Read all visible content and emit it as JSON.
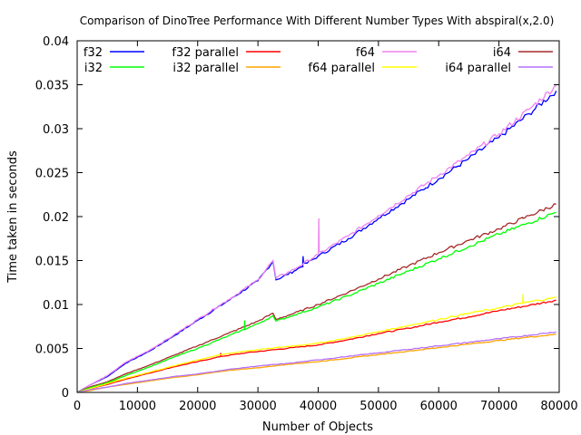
{
  "chart_data": {
    "type": "line",
    "title": "Comparison of DinoTree Performance With Different Number Types With abspiral(x,2.0)",
    "xlabel": "Number of Objects",
    "ylabel": "Time taken in seconds",
    "xlim": [
      0,
      80000
    ],
    "ylim": [
      0,
      0.04
    ],
    "x_ticks": [
      "0",
      "10000",
      "20000",
      "30000",
      "40000",
      "50000",
      "60000",
      "70000",
      "80000"
    ],
    "y_ticks": [
      "0",
      "0.005",
      "0.01",
      "0.015",
      "0.02",
      "0.025",
      "0.03",
      "0.035",
      "0.04"
    ],
    "grid": false,
    "legend_position": "top",
    "series": [
      {
        "name": "f32",
        "color": "#0000ff",
        "points": [
          [
            0,
            0
          ],
          [
            2000,
            0.0008
          ],
          [
            5000,
            0.0018
          ],
          [
            8000,
            0.0033
          ],
          [
            12000,
            0.0047
          ],
          [
            16000,
            0.0064
          ],
          [
            20000,
            0.0082
          ],
          [
            25000,
            0.0104
          ],
          [
            30000,
            0.0127
          ],
          [
            32500,
            0.0149
          ],
          [
            33000,
            0.0128
          ],
          [
            36000,
            0.0138
          ],
          [
            40000,
            0.0155
          ],
          [
            45000,
            0.0175
          ],
          [
            50000,
            0.0198
          ],
          [
            55000,
            0.022
          ],
          [
            60000,
            0.0243
          ],
          [
            65000,
            0.0266
          ],
          [
            70000,
            0.029
          ],
          [
            75000,
            0.0317
          ],
          [
            79500,
            0.0343
          ]
        ]
      },
      {
        "name": "f32 parallel",
        "color": "#ff0000",
        "points": [
          [
            0,
            0
          ],
          [
            2000,
            0.0004
          ],
          [
            5000,
            0.0009
          ],
          [
            8000,
            0.0015
          ],
          [
            12000,
            0.0022
          ],
          [
            16000,
            0.0029
          ],
          [
            20000,
            0.0035
          ],
          [
            24000,
            0.0041
          ],
          [
            28000,
            0.0045
          ],
          [
            32000,
            0.0048
          ],
          [
            36000,
            0.0051
          ],
          [
            40000,
            0.0054
          ],
          [
            45000,
            0.006
          ],
          [
            50000,
            0.0067
          ],
          [
            55000,
            0.0073
          ],
          [
            60000,
            0.008
          ],
          [
            65000,
            0.0086
          ],
          [
            70000,
            0.0093
          ],
          [
            75000,
            0.0099
          ],
          [
            79500,
            0.0105
          ]
        ]
      },
      {
        "name": "f64",
        "color": "#ee82ee",
        "points": [
          [
            0,
            0
          ],
          [
            2000,
            0.0008
          ],
          [
            5000,
            0.0019
          ],
          [
            8000,
            0.0034
          ],
          [
            12000,
            0.0048
          ],
          [
            16000,
            0.0065
          ],
          [
            20000,
            0.0083
          ],
          [
            25000,
            0.0105
          ],
          [
            30000,
            0.0128
          ],
          [
            32500,
            0.015
          ],
          [
            33000,
            0.013
          ],
          [
            36000,
            0.014
          ],
          [
            40000,
            0.0157
          ],
          [
            45000,
            0.0178
          ],
          [
            50000,
            0.0201
          ],
          [
            55000,
            0.0224
          ],
          [
            60000,
            0.0247
          ],
          [
            65000,
            0.027
          ],
          [
            70000,
            0.0294
          ],
          [
            75000,
            0.0322
          ],
          [
            79500,
            0.0349
          ]
        ]
      },
      {
        "name": "i64",
        "color": "#a52a2a",
        "points": [
          [
            0,
            0
          ],
          [
            2000,
            0.0006
          ],
          [
            5000,
            0.0012
          ],
          [
            8000,
            0.0021
          ],
          [
            12000,
            0.0031
          ],
          [
            16000,
            0.0042
          ],
          [
            20000,
            0.0053
          ],
          [
            25000,
            0.0067
          ],
          [
            30000,
            0.0081
          ],
          [
            32500,
            0.009
          ],
          [
            33000,
            0.0083
          ],
          [
            36000,
            0.009
          ],
          [
            40000,
            0.01
          ],
          [
            45000,
            0.0114
          ],
          [
            50000,
            0.0129
          ],
          [
            55000,
            0.0144
          ],
          [
            60000,
            0.0159
          ],
          [
            65000,
            0.0173
          ],
          [
            70000,
            0.0186
          ],
          [
            75000,
            0.0201
          ],
          [
            79500,
            0.0214
          ]
        ]
      },
      {
        "name": "i32",
        "color": "#00ff00",
        "points": [
          [
            0,
            0
          ],
          [
            2000,
            0.0005
          ],
          [
            5000,
            0.0011
          ],
          [
            8000,
            0.0019
          ],
          [
            12000,
            0.0029
          ],
          [
            16000,
            0.004
          ],
          [
            20000,
            0.005
          ],
          [
            25000,
            0.0064
          ],
          [
            30000,
            0.0078
          ],
          [
            32500,
            0.0087
          ],
          [
            33000,
            0.0081
          ],
          [
            36000,
            0.0088
          ],
          [
            40000,
            0.0097
          ],
          [
            45000,
            0.011
          ],
          [
            50000,
            0.0124
          ],
          [
            55000,
            0.0138
          ],
          [
            60000,
            0.0152
          ],
          [
            65000,
            0.0166
          ],
          [
            70000,
            0.018
          ],
          [
            75000,
            0.0193
          ],
          [
            79500,
            0.0205
          ]
        ]
      },
      {
        "name": "i32 parallel",
        "color": "#ffa500",
        "points": [
          [
            0,
            0
          ],
          [
            2000,
            0.0002
          ],
          [
            5000,
            0.0006
          ],
          [
            8000,
            0.0009
          ],
          [
            12000,
            0.0013
          ],
          [
            16000,
            0.0017
          ],
          [
            20000,
            0.002
          ],
          [
            25000,
            0.0025
          ],
          [
            30000,
            0.0028
          ],
          [
            35000,
            0.0032
          ],
          [
            40000,
            0.0035
          ],
          [
            45000,
            0.0039
          ],
          [
            50000,
            0.0043
          ],
          [
            55000,
            0.0047
          ],
          [
            60000,
            0.0051
          ],
          [
            65000,
            0.0055
          ],
          [
            70000,
            0.0059
          ],
          [
            75000,
            0.0063
          ],
          [
            79500,
            0.0066
          ]
        ]
      },
      {
        "name": "f64 parallel",
        "color": "#ffff00",
        "points": [
          [
            0,
            0
          ],
          [
            2000,
            0.0004
          ],
          [
            5000,
            0.001
          ],
          [
            8000,
            0.0016
          ],
          [
            12000,
            0.0023
          ],
          [
            16000,
            0.003
          ],
          [
            20000,
            0.0037
          ],
          [
            24000,
            0.0043
          ],
          [
            28000,
            0.0047
          ],
          [
            32000,
            0.005
          ],
          [
            36000,
            0.0053
          ],
          [
            40000,
            0.0056
          ],
          [
            45000,
            0.0062
          ],
          [
            50000,
            0.0069
          ],
          [
            55000,
            0.0076
          ],
          [
            60000,
            0.0083
          ],
          [
            65000,
            0.009
          ],
          [
            70000,
            0.0096
          ],
          [
            75000,
            0.0103
          ],
          [
            79500,
            0.0108
          ]
        ]
      },
      {
        "name": "i64 parallel",
        "color": "#b570ff",
        "points": [
          [
            0,
            0
          ],
          [
            2000,
            0.0003
          ],
          [
            5000,
            0.0006
          ],
          [
            8000,
            0.001
          ],
          [
            12000,
            0.0014
          ],
          [
            16000,
            0.0018
          ],
          [
            20000,
            0.0021
          ],
          [
            25000,
            0.0026
          ],
          [
            30000,
            0.003
          ],
          [
            35000,
            0.0033
          ],
          [
            40000,
            0.0037
          ],
          [
            45000,
            0.0041
          ],
          [
            50000,
            0.0045
          ],
          [
            55000,
            0.0049
          ],
          [
            60000,
            0.0053
          ],
          [
            65000,
            0.0057
          ],
          [
            70000,
            0.0061
          ],
          [
            75000,
            0.0065
          ],
          [
            79500,
            0.0069
          ]
        ]
      }
    ],
    "spikes": [
      {
        "series": "f64",
        "x": 40100,
        "y": 0.0198
      },
      {
        "series": "f32",
        "x": 37500,
        "y": 0.0155
      },
      {
        "series": "i32",
        "x": 27800,
        "y": 0.0082
      },
      {
        "series": "f32 parallel",
        "x": 23800,
        "y": 0.0045
      },
      {
        "series": "i64",
        "x": 74000,
        "y": 0.0198
      },
      {
        "series": "f64 parallel",
        "x": 74000,
        "y": 0.0112
      }
    ]
  }
}
